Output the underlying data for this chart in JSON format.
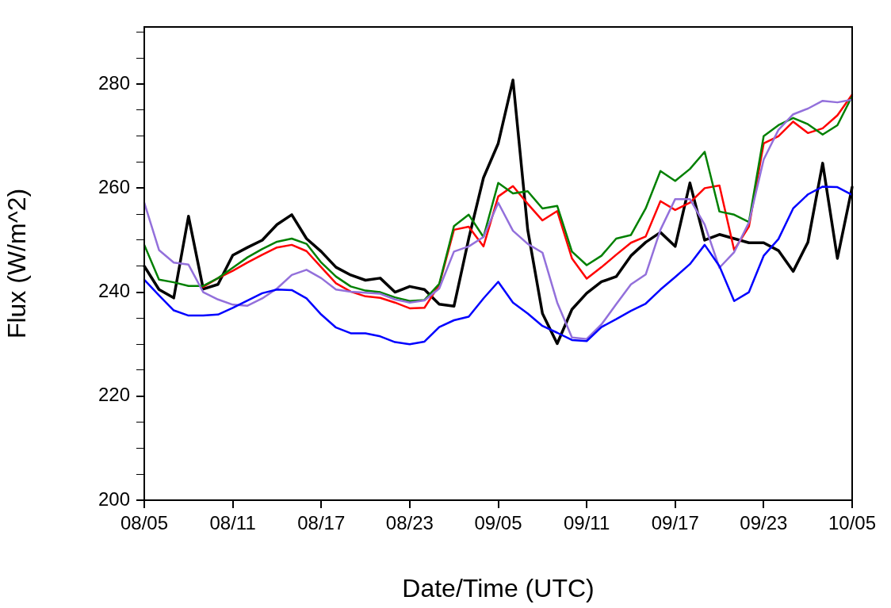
{
  "chart_data": {
    "type": "line",
    "xlabel": "Date/Time (UTC)",
    "ylabel": "Flux (W/m^2)",
    "categories": [
      "08/05",
      null,
      null,
      null,
      null,
      null,
      "08/11",
      null,
      null,
      null,
      null,
      null,
      "08/17",
      null,
      null,
      null,
      null,
      null,
      "08/23",
      null,
      null,
      null,
      null,
      null,
      "09/05",
      null,
      null,
      null,
      null,
      null,
      "09/11",
      null,
      null,
      null,
      null,
      null,
      "09/17",
      null,
      null,
      null,
      null,
      null,
      "09/23",
      null,
      null,
      null,
      null,
      null,
      "10/05"
    ],
    "ylim": [
      200,
      291
    ],
    "yticks": [
      200,
      {
        "value": 205,
        "label": null
      },
      {
        "value": 210,
        "label": null
      },
      {
        "value": 215,
        "label": null
      },
      220,
      {
        "value": 225,
        "label": null
      },
      {
        "value": 230,
        "label": null
      },
      {
        "value": 235,
        "label": null
      },
      240,
      {
        "value": 245,
        "label": null
      },
      {
        "value": 250,
        "label": null
      },
      {
        "value": 255,
        "label": null
      },
      260,
      {
        "value": 265,
        "label": null
      },
      {
        "value": 270,
        "label": null
      },
      {
        "value": 275,
        "label": null
      },
      280,
      {
        "value": 285,
        "label": null
      },
      {
        "value": 290,
        "label": null
      }
    ],
    "grid": false,
    "legend": false,
    "marker": "none",
    "line_style": "solid",
    "series": [
      {
        "color": "#0000ff",
        "values": [
          242.4,
          239.4,
          236.5,
          235.5,
          235.5,
          235.7,
          237.0,
          238.4,
          239.8,
          240.5,
          240.4,
          238.8,
          235.7,
          233.2,
          232.1,
          232.1,
          231.5,
          230.4,
          230.0,
          230.5,
          233.3,
          234.6,
          235.3,
          238.8,
          242.0,
          238.0,
          235.9,
          233.5,
          232.2,
          230.8,
          230.6,
          233.3,
          234.8,
          236.4,
          237.8,
          240.5,
          242.9,
          245.4,
          249.1,
          245.0,
          238.3,
          240.0,
          247.0,
          250.2,
          256.1,
          258.8,
          260.3,
          260.2,
          258.7
        ]
      },
      {
        "color": "#9370db",
        "values": [
          257.2,
          248.1,
          245.7,
          245.3,
          240.0,
          238.6,
          237.6,
          237.4,
          238.8,
          240.7,
          243.3,
          244.3,
          242.7,
          240.5,
          240.1,
          239.9,
          239.7,
          238.6,
          238.0,
          238.4,
          240.7,
          247.8,
          248.8,
          250.6,
          257.2,
          251.8,
          249.3,
          247.6,
          238.0,
          231.3,
          231.0,
          233.8,
          237.7,
          241.5,
          243.4,
          252.0,
          257.9,
          257.9,
          253.0,
          244.7,
          247.7,
          253.4,
          265.5,
          271.2,
          274.2,
          275.3,
          276.8,
          276.5,
          277.0
        ]
      },
      {
        "color": "#008000",
        "values": [
          249.1,
          242.4,
          241.9,
          241.2,
          241.2,
          242.7,
          244.7,
          246.7,
          248.3,
          249.7,
          250.3,
          249.3,
          245.7,
          243.0,
          241.1,
          240.3,
          240.0,
          239.0,
          238.3,
          238.5,
          241.6,
          252.7,
          254.9,
          250.6,
          261.0,
          259.0,
          259.4,
          256.1,
          256.6,
          247.8,
          245.2,
          247.0,
          250.3,
          251.0,
          256.1,
          263.3,
          261.4,
          263.7,
          267.0,
          255.5,
          254.9,
          253.5,
          270.0,
          272.1,
          273.5,
          272.3,
          270.3,
          272.1,
          277.7
        ]
      },
      {
        "color": "#ff0000",
        "values": [
          null,
          null,
          null,
          null,
          241.0,
          242.7,
          244.1,
          245.7,
          247.2,
          248.6,
          249.1,
          247.9,
          244.8,
          241.7,
          240.1,
          239.2,
          238.9,
          238.0,
          236.9,
          237.0,
          241.4,
          252.0,
          252.6,
          248.8,
          258.4,
          260.4,
          257.0,
          253.8,
          255.6,
          246.5,
          242.6,
          244.8,
          247.2,
          249.5,
          250.7,
          257.5,
          255.8,
          257.2,
          260.0,
          260.5,
          248.1,
          252.6,
          268.6,
          270.0,
          272.8,
          270.6,
          271.5,
          274.0,
          278.0
        ]
      },
      {
        "color": "#000000",
        "values": [
          245.0,
          240.5,
          238.9,
          254.6,
          240.6,
          241.5,
          247.1,
          248.6,
          250.0,
          253.0,
          254.9,
          250.3,
          247.8,
          244.8,
          243.3,
          242.3,
          242.7,
          240.0,
          241.1,
          240.5,
          237.7,
          237.3,
          250.3,
          262.0,
          268.6,
          280.8,
          252.0,
          235.9,
          230.1,
          236.7,
          239.8,
          242.0,
          243.0,
          247.0,
          249.6,
          251.5,
          248.8,
          261.0,
          250.0,
          251.1,
          250.3,
          249.5,
          249.5,
          248.0,
          244.0,
          249.6,
          264.8,
          246.5,
          260.2
        ]
      }
    ]
  }
}
